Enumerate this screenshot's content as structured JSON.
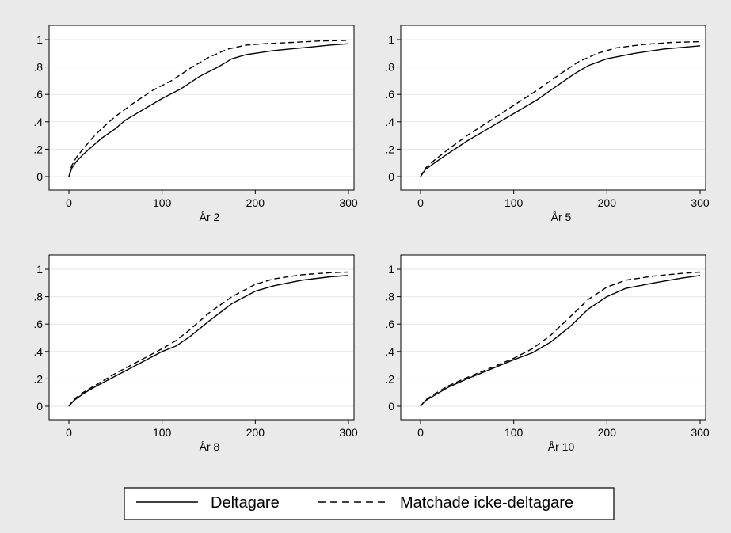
{
  "chart_data": [
    {
      "type": "line",
      "title": "",
      "xlabel": "År 2",
      "ylabel": "",
      "xlim": [
        0,
        300
      ],
      "ylim": [
        0,
        1
      ],
      "x_ticks": [
        "0",
        "100",
        "200",
        "300"
      ],
      "y_ticks": [
        "0",
        ".2",
        ".4",
        ".6",
        ".8",
        "1"
      ],
      "grid": true,
      "series": [
        {
          "name": "Deltagare",
          "style": "solid",
          "points": [
            [
              0,
              0
            ],
            [
              3,
              0.06
            ],
            [
              8,
              0.11
            ],
            [
              15,
              0.16
            ],
            [
              25,
              0.22
            ],
            [
              35,
              0.28
            ],
            [
              50,
              0.35
            ],
            [
              60,
              0.41
            ],
            [
              80,
              0.49
            ],
            [
              100,
              0.57
            ],
            [
              120,
              0.64
            ],
            [
              140,
              0.73
            ],
            [
              160,
              0.8
            ],
            [
              175,
              0.86
            ],
            [
              190,
              0.89
            ],
            [
              200,
              0.9
            ],
            [
              220,
              0.92
            ],
            [
              250,
              0.94
            ],
            [
              280,
              0.96
            ],
            [
              300,
              0.97
            ]
          ]
        },
        {
          "name": "Matchade icke-deltagare",
          "style": "dashed",
          "points": [
            [
              0,
              0
            ],
            [
              3,
              0.08
            ],
            [
              8,
              0.14
            ],
            [
              15,
              0.2
            ],
            [
              25,
              0.28
            ],
            [
              35,
              0.35
            ],
            [
              50,
              0.44
            ],
            [
              70,
              0.54
            ],
            [
              90,
              0.63
            ],
            [
              110,
              0.7
            ],
            [
              130,
              0.79
            ],
            [
              150,
              0.87
            ],
            [
              170,
              0.93
            ],
            [
              190,
              0.96
            ],
            [
              210,
              0.97
            ],
            [
              240,
              0.98
            ],
            [
              270,
              0.99
            ],
            [
              300,
              0.995
            ]
          ]
        }
      ]
    },
    {
      "type": "line",
      "title": "",
      "xlabel": "År 5",
      "ylabel": "",
      "xlim": [
        0,
        300
      ],
      "ylim": [
        0,
        1
      ],
      "x_ticks": [
        "0",
        "100",
        "200",
        "300"
      ],
      "y_ticks": [
        "0",
        ".2",
        ".4",
        ".6",
        ".8",
        "1"
      ],
      "grid": true,
      "series": [
        {
          "name": "Deltagare",
          "style": "solid",
          "points": [
            [
              0,
              0
            ],
            [
              5,
              0.05
            ],
            [
              15,
              0.1
            ],
            [
              30,
              0.17
            ],
            [
              50,
              0.26
            ],
            [
              75,
              0.36
            ],
            [
              100,
              0.46
            ],
            [
              125,
              0.56
            ],
            [
              150,
              0.68
            ],
            [
              165,
              0.75
            ],
            [
              180,
              0.81
            ],
            [
              200,
              0.86
            ],
            [
              230,
              0.9
            ],
            [
              260,
              0.93
            ],
            [
              300,
              0.955
            ]
          ]
        },
        {
          "name": "Matchade icke-deltagare",
          "style": "dashed",
          "points": [
            [
              0,
              0
            ],
            [
              5,
              0.06
            ],
            [
              15,
              0.12
            ],
            [
              30,
              0.2
            ],
            [
              50,
              0.3
            ],
            [
              75,
              0.41
            ],
            [
              100,
              0.52
            ],
            [
              125,
              0.63
            ],
            [
              150,
              0.75
            ],
            [
              170,
              0.84
            ],
            [
              190,
              0.9
            ],
            [
              210,
              0.94
            ],
            [
              240,
              0.965
            ],
            [
              270,
              0.98
            ],
            [
              300,
              0.985
            ]
          ]
        }
      ]
    },
    {
      "type": "line",
      "title": "",
      "xlabel": "År 8",
      "ylabel": "",
      "xlim": [
        0,
        300
      ],
      "ylim": [
        0,
        1
      ],
      "x_ticks": [
        "0",
        "100",
        "200",
        "300"
      ],
      "y_ticks": [
        "0",
        ".2",
        ".4",
        ".6",
        ".8",
        "1"
      ],
      "grid": true,
      "series": [
        {
          "name": "Deltagare",
          "style": "solid",
          "points": [
            [
              0,
              0
            ],
            [
              5,
              0.04
            ],
            [
              15,
              0.09
            ],
            [
              30,
              0.15
            ],
            [
              50,
              0.22
            ],
            [
              75,
              0.31
            ],
            [
              100,
              0.4
            ],
            [
              115,
              0.44
            ],
            [
              130,
              0.51
            ],
            [
              150,
              0.62
            ],
            [
              175,
              0.75
            ],
            [
              200,
              0.84
            ],
            [
              220,
              0.88
            ],
            [
              250,
              0.92
            ],
            [
              280,
              0.945
            ],
            [
              300,
              0.955
            ]
          ]
        },
        {
          "name": "Matchade icke-deltagare",
          "style": "dashed",
          "points": [
            [
              0,
              0
            ],
            [
              5,
              0.05
            ],
            [
              15,
              0.1
            ],
            [
              30,
              0.16
            ],
            [
              50,
              0.24
            ],
            [
              75,
              0.33
            ],
            [
              100,
              0.42
            ],
            [
              115,
              0.48
            ],
            [
              130,
              0.56
            ],
            [
              150,
              0.68
            ],
            [
              175,
              0.8
            ],
            [
              200,
              0.89
            ],
            [
              220,
              0.93
            ],
            [
              250,
              0.96
            ],
            [
              280,
              0.975
            ],
            [
              300,
              0.98
            ]
          ]
        }
      ]
    },
    {
      "type": "line",
      "title": "",
      "xlabel": "År 10",
      "ylabel": "",
      "xlim": [
        0,
        300
      ],
      "ylim": [
        0,
        1
      ],
      "x_ticks": [
        "0",
        "100",
        "200",
        "300"
      ],
      "y_ticks": [
        "0",
        ".2",
        ".4",
        ".6",
        ".8",
        "1"
      ],
      "grid": true,
      "series": [
        {
          "name": "Deltagare",
          "style": "solid",
          "points": [
            [
              0,
              0
            ],
            [
              5,
              0.04
            ],
            [
              15,
              0.08
            ],
            [
              30,
              0.14
            ],
            [
              50,
              0.2
            ],
            [
              75,
              0.27
            ],
            [
              100,
              0.34
            ],
            [
              120,
              0.39
            ],
            [
              140,
              0.47
            ],
            [
              160,
              0.58
            ],
            [
              180,
              0.71
            ],
            [
              200,
              0.8
            ],
            [
              220,
              0.86
            ],
            [
              250,
              0.9
            ],
            [
              280,
              0.935
            ],
            [
              300,
              0.955
            ]
          ]
        },
        {
          "name": "Matchade icke-deltagare",
          "style": "dashed",
          "points": [
            [
              0,
              0
            ],
            [
              5,
              0.045
            ],
            [
              15,
              0.09
            ],
            [
              30,
              0.15
            ],
            [
              50,
              0.21
            ],
            [
              75,
              0.28
            ],
            [
              100,
              0.35
            ],
            [
              120,
              0.42
            ],
            [
              140,
              0.52
            ],
            [
              160,
              0.65
            ],
            [
              180,
              0.78
            ],
            [
              200,
              0.87
            ],
            [
              220,
              0.92
            ],
            [
              250,
              0.95
            ],
            [
              280,
              0.97
            ],
            [
              300,
              0.98
            ]
          ]
        }
      ]
    }
  ],
  "legend": {
    "placement": "bottom",
    "items": [
      {
        "label": "Deltagare",
        "style": "solid"
      },
      {
        "label": "Matchade icke-deltagare",
        "style": "dashed"
      }
    ]
  },
  "colors": {
    "figure_background": "#eaeaea",
    "panel_background": "#ffffff",
    "gridline": "#e6e6e6",
    "line": "#000000"
  }
}
